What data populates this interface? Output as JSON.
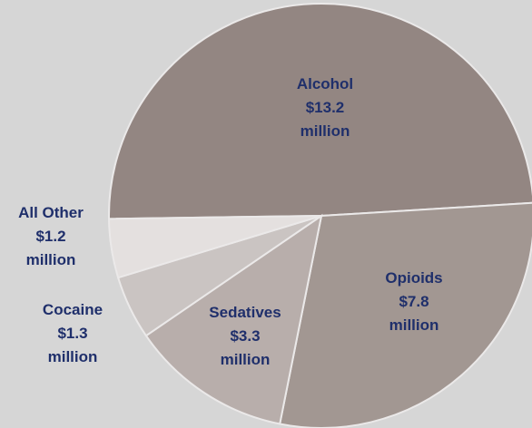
{
  "chart_data": {
    "type": "pie",
    "slices": [
      {
        "label": "Alcohol",
        "amount": "$13.2",
        "unit": "million",
        "value": 13.2,
        "color": "#938682",
        "label_color": "#1f2f6b"
      },
      {
        "label": "Opioids",
        "amount": "$7.8",
        "unit": "million",
        "value": 7.8,
        "color": "#a29792",
        "label_color": "#1f2f6b"
      },
      {
        "label": "Sedatives",
        "amount": "$3.3",
        "unit": "million",
        "value": 3.3,
        "color": "#b8aeab",
        "label_color": "#1f2f6b"
      },
      {
        "label": "Cocaine",
        "amount": "$1.3",
        "unit": "million",
        "value": 1.3,
        "color": "#cac4c2",
        "label_color": "#1f2f6b"
      },
      {
        "label": "All Other",
        "amount": "$1.2",
        "unit": "million",
        "value": 1.2,
        "color": "#e4e0df",
        "label_color": "#1f2f6b"
      }
    ]
  }
}
